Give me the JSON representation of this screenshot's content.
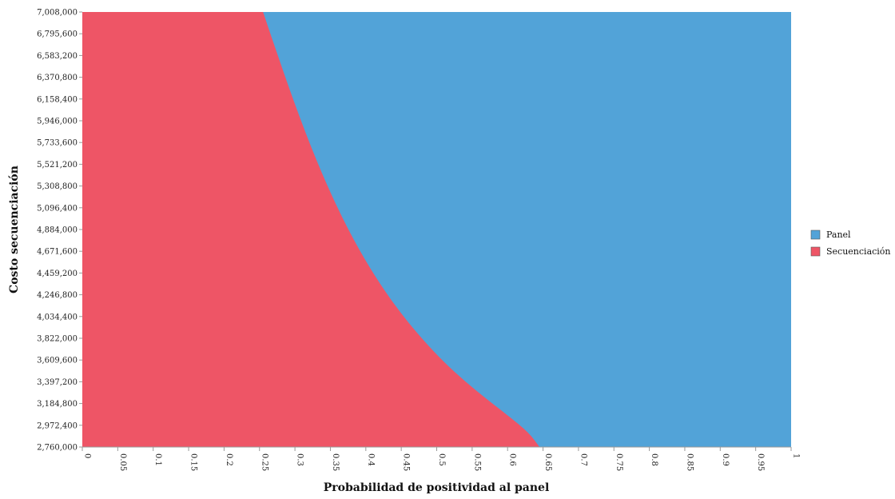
{
  "chart_data": {
    "type": "area",
    "title": "",
    "xlabel": "Probabilidad de positividad al panel",
    "ylabel": "Costo secuenciación",
    "xlim": [
      0,
      1
    ],
    "ylim": [
      2760000,
      7008000
    ],
    "x_ticks": [
      "0",
      "0.05",
      "0.1",
      "0.15",
      "0.2",
      "0.25",
      "0.3",
      "0.35",
      "0.4",
      "0.45",
      "0.5",
      "0.55",
      "0.6",
      "0.65",
      "0.7",
      "0.75",
      "0.8",
      "0.85",
      "0.9",
      "0.95",
      "1"
    ],
    "y_ticks": [
      "7,008,000",
      "6,795,600",
      "6,583,200",
      "6,370,800",
      "6,158,400",
      "5,946,000",
      "5,733,600",
      "5,521,200",
      "5,308,800",
      "5,096,400",
      "4,884,000",
      "4,671,600",
      "4,459,200",
      "4,246,800",
      "4,034,400",
      "3,822,000",
      "3,609,600",
      "3,397,200",
      "3,184,800",
      "2,972,400",
      "2,760,000"
    ],
    "legend_position": "right",
    "series": [
      {
        "name": "Panel",
        "color": "#52A3D8",
        "region": "right of threshold"
      },
      {
        "name": "Secuenciación",
        "color": "#EE5566",
        "region": "left of threshold"
      }
    ],
    "threshold_curve": {
      "x": [
        0.255,
        0.27,
        0.3,
        0.33,
        0.36,
        0.39,
        0.42,
        0.45,
        0.48,
        0.51,
        0.54,
        0.57,
        0.6,
        0.63,
        0.645
      ],
      "y": [
        7008000,
        6700000,
        6100000,
        5560000,
        5090000,
        4690000,
        4350000,
        4060000,
        3810000,
        3590000,
        3400000,
        3230000,
        3070000,
        2900000,
        2760000
      ]
    }
  }
}
